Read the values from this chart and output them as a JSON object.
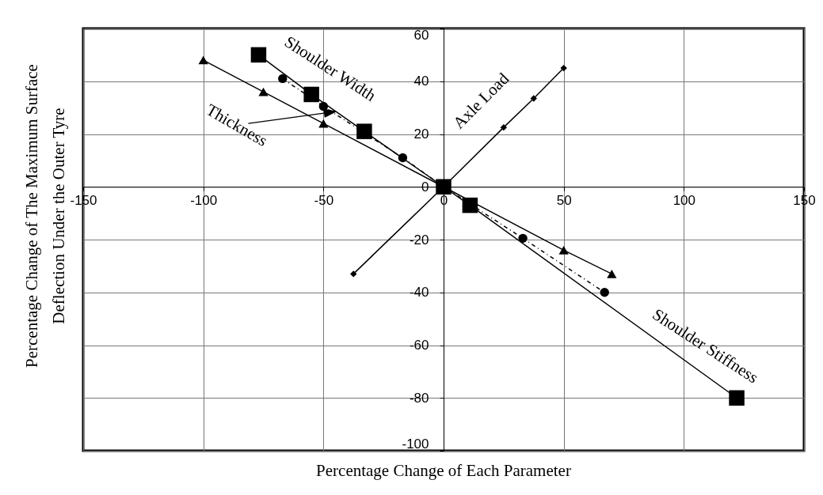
{
  "chart_data": {
    "type": "line",
    "xlabel": "Percentage Change of Each Parameter",
    "ylabel": "Percentage Change of The Maximum Surface Deflection Under the Outer Tyre",
    "xlim": [
      -150,
      150
    ],
    "ylim": [
      -100,
      60
    ],
    "xticks": [
      -150,
      -100,
      -50,
      0,
      50,
      100,
      150
    ],
    "yticks": [
      -100,
      -80,
      -60,
      -40,
      -20,
      0,
      20,
      40,
      60
    ],
    "grid": true,
    "legend": false,
    "series": [
      {
        "name": "Axle Load",
        "color": "#000000",
        "marker": "diamond",
        "line_style": "solid",
        "x": [
          -37.5,
          0,
          25,
          37.5,
          50
        ],
        "values": [
          -33,
          0,
          22.5,
          33.5,
          45
        ]
      },
      {
        "name": "Thickness",
        "color": "#000000",
        "marker": "triangle",
        "line_style": "solid",
        "x": [
          -100,
          -75,
          -50,
          0,
          50,
          70
        ],
        "values": [
          48,
          36,
          24,
          0,
          -24,
          -33
        ]
      },
      {
        "name": "Shoulder Width",
        "color": "#000000",
        "marker": "circle",
        "line_style": "dotted",
        "x": [
          -67,
          -50,
          -17,
          0,
          33,
          67
        ],
        "values": [
          41,
          30.5,
          11,
          0,
          -19.5,
          -40
        ]
      },
      {
        "name": "Shoulder Stiffness",
        "color": "#000000",
        "marker": "square",
        "line_style": "solid",
        "x": [
          -77,
          -55,
          -33,
          0,
          11,
          122
        ],
        "values": [
          50,
          35,
          21,
          0,
          -7,
          -80
        ]
      }
    ]
  }
}
